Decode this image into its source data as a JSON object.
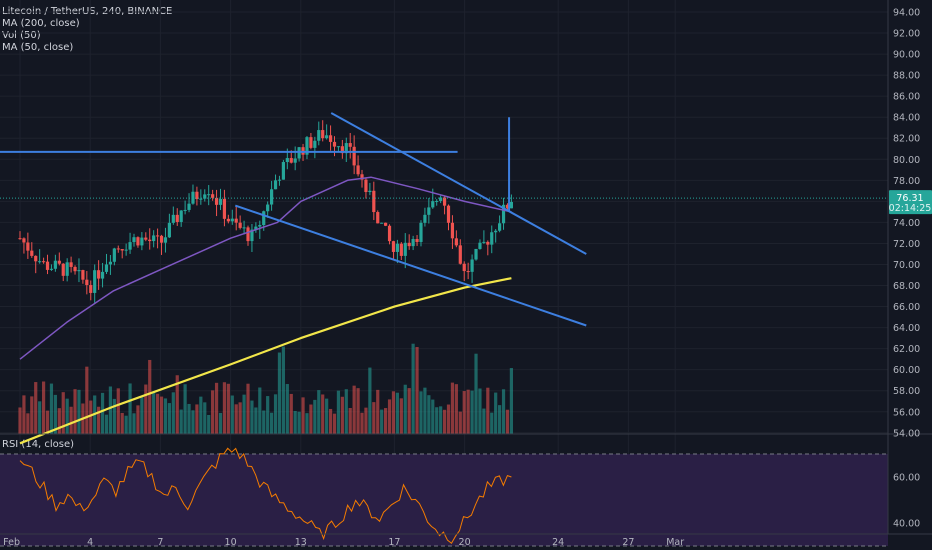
{
  "header": {
    "title": "Litecoin / TetherUS, 240, BINANCE",
    "indicators": [
      "MA (200, close)",
      "Vol (50)",
      "MA (50, close)"
    ]
  },
  "rsi_label": "RSI (14, close)",
  "price_tag": {
    "price": "76.31",
    "countdown": "02:14:25"
  },
  "colors": {
    "background": "#131722",
    "up": "#26a69a",
    "down": "#ef5350",
    "ma200": "#f2e64a",
    "ma50": "#7e57c2",
    "trendlines": "#3d7fe0",
    "rsi_line": "#f57c00",
    "rsi_band": "#2a1f45"
  },
  "chart_data": [
    {
      "type": "candlestick",
      "title": "Litecoin / TetherUS, 240, BINANCE",
      "x_tick_labels": [
        "Feb",
        "4",
        "7",
        "10",
        "13",
        "17",
        "20",
        "24",
        "27",
        "Mar"
      ],
      "y_tick_labels": [
        "54.00",
        "56.00",
        "58.00",
        "60.00",
        "62.00",
        "64.00",
        "66.00",
        "68.00",
        "70.00",
        "72.00",
        "74.00",
        "76.00",
        "78.00",
        "80.00",
        "82.00",
        "84.00",
        "86.00",
        "88.00",
        "90.00",
        "92.00",
        "94.00"
      ],
      "ylim": [
        53,
        95
      ],
      "last_price": 76.31,
      "close_path": [
        {
          "x": "Feb 1",
          "y": 72.5
        },
        {
          "x": "Feb 2",
          "y": 70.0
        },
        {
          "x": "Feb 3",
          "y": 69.5
        },
        {
          "x": "Feb 4",
          "y": 68.0
        },
        {
          "x": "Feb 5",
          "y": 71.5
        },
        {
          "x": "Feb 6",
          "y": 72.5
        },
        {
          "x": "Feb 7",
          "y": 72.0
        },
        {
          "x": "Feb 8",
          "y": 75.5
        },
        {
          "x": "Feb 9",
          "y": 77.5
        },
        {
          "x": "Feb 10",
          "y": 74.0
        },
        {
          "x": "Feb 11",
          "y": 72.5
        },
        {
          "x": "Feb 12",
          "y": 78.5
        },
        {
          "x": "Feb 13",
          "y": 81.0
        },
        {
          "x": "Feb 14",
          "y": 82.5
        },
        {
          "x": "Feb 15",
          "y": 81.0
        },
        {
          "x": "Feb 16",
          "y": 76.0
        },
        {
          "x": "Feb 17",
          "y": 71.0
        },
        {
          "x": "Feb 18",
          "y": 73.0
        },
        {
          "x": "Feb 19",
          "y": 77.0
        },
        {
          "x": "Feb 20",
          "y": 69.0
        },
        {
          "x": "Feb 21",
          "y": 72.5
        },
        {
          "x": "Feb 22",
          "y": 76.31
        }
      ],
      "ma200": [
        {
          "x": "Feb 1",
          "y": 53.0
        },
        {
          "x": "Feb 5",
          "y": 56.5
        },
        {
          "x": "Feb 10",
          "y": 60.5
        },
        {
          "x": "Feb 13",
          "y": 63.0
        },
        {
          "x": "Feb 17",
          "y": 66.0
        },
        {
          "x": "Feb 20",
          "y": 67.8
        },
        {
          "x": "Feb 22",
          "y": 68.7
        }
      ],
      "ma50": [
        {
          "x": "Feb 1",
          "y": 61.0
        },
        {
          "x": "Feb 3",
          "y": 64.5
        },
        {
          "x": "Feb 5",
          "y": 67.5
        },
        {
          "x": "Feb 7",
          "y": 69.5
        },
        {
          "x": "Feb 10",
          "y": 72.5
        },
        {
          "x": "Feb 12",
          "y": 74.0
        },
        {
          "x": "Feb 13",
          "y": 76.0
        },
        {
          "x": "Feb 15",
          "y": 78.0
        },
        {
          "x": "Feb 16",
          "y": 78.3
        },
        {
          "x": "Feb 18",
          "y": 77.2
        },
        {
          "x": "Feb 20",
          "y": 76.0
        },
        {
          "x": "Feb 22",
          "y": 75.0
        }
      ],
      "drawings": [
        {
          "kind": "horizontal",
          "y": 80.7,
          "x_from": "Feb 1",
          "x_to": "Feb 19.7"
        },
        {
          "kind": "trendline",
          "from": {
            "x": "Feb 14.3",
            "y": 84.4
          },
          "to": {
            "x": "Feb 25.2",
            "y": 71.0
          }
        },
        {
          "kind": "trendline",
          "from": {
            "x": "Feb 10.2",
            "y": 75.6
          },
          "to": {
            "x": "Feb 25.2",
            "y": 64.2
          }
        },
        {
          "kind": "vertical",
          "x": "Feb 21.9",
          "y_from": 75.0,
          "y_to": 84.0
        }
      ]
    },
    {
      "type": "line",
      "title": "RSI (14, close)",
      "y_tick_labels": [
        "40.00",
        "60.00"
      ],
      "ylim": [
        25,
        77
      ],
      "band": [
        30,
        70
      ],
      "series": [
        {
          "values": [
            68,
            62,
            55,
            48,
            52,
            46,
            50,
            58,
            54,
            62,
            66,
            60,
            52,
            55,
            48,
            56,
            64,
            70,
            72,
            66,
            58,
            52,
            48,
            44,
            40,
            35,
            38,
            44,
            50,
            46,
            42,
            48,
            55,
            50,
            42,
            36,
            34,
            40,
            48,
            55,
            58,
            60
          ]
        }
      ]
    }
  ]
}
